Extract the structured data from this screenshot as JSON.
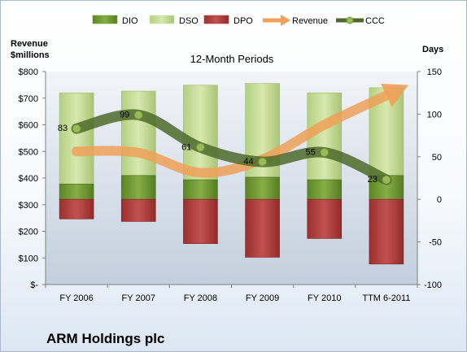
{
  "company": "ARM Holdings plc",
  "chart_data": {
    "type": "bar",
    "title": "12-Month Periods",
    "categories": [
      "FY 2006",
      "FY 2007",
      "FY 2008",
      "FY 2009",
      "FY 2010",
      "TTM 6-2011"
    ],
    "left_axis": {
      "label_line1": "Revenue",
      "label_line2": "$millions",
      "range": [
        0,
        800
      ],
      "ticks": [
        "$-",
        "$100",
        "$200",
        "$300",
        "$400",
        "$500",
        "$600",
        "$700",
        "$800"
      ],
      "tick_values": [
        0,
        100,
        200,
        300,
        400,
        500,
        600,
        700,
        800
      ]
    },
    "right_axis": {
      "label": "Days",
      "range": [
        -100,
        150
      ],
      "ticks": [
        "-100",
        "-50",
        "0",
        "50",
        "100",
        "150"
      ],
      "tick_values": [
        -100,
        -50,
        0,
        50,
        100,
        150
      ]
    },
    "legend": {
      "position": "top",
      "items": [
        {
          "name": "DIO",
          "kind": "bar",
          "color": "#6f9a32"
        },
        {
          "name": "DSO",
          "kind": "bar",
          "color": "#c9df9a"
        },
        {
          "name": "DPO",
          "kind": "bar",
          "color": "#b33e3c"
        },
        {
          "name": "Revenue",
          "kind": "arrow",
          "color": "#f0a058"
        },
        {
          "name": "CCC",
          "kind": "line",
          "color": "#4d6a2a"
        }
      ]
    },
    "series": [
      {
        "name": "DIO",
        "axis": "right",
        "values": [
          18,
          28,
          23,
          26,
          23,
          28
        ]
      },
      {
        "name": "DSO",
        "axis": "right",
        "values": [
          107,
          99,
          111,
          110,
          102,
          103
        ]
      },
      {
        "name": "DPO",
        "axis": "right",
        "values": [
          -23,
          -26,
          -52,
          -68,
          -46,
          -76
        ]
      },
      {
        "name": "Revenue",
        "axis": "left",
        "values": [
          500,
          495,
          420,
          470,
          600,
          710
        ]
      },
      {
        "name": "CCC",
        "axis": "right",
        "values": [
          83,
          99,
          61,
          44,
          55,
          23
        ]
      }
    ],
    "ccc_labels": [
      "83",
      "99",
      "61",
      "44",
      "55",
      "23"
    ],
    "grid": false
  }
}
